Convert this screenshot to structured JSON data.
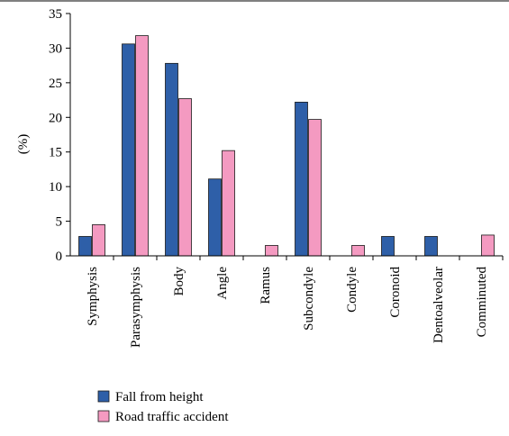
{
  "chart_data": {
    "type": "bar",
    "title": "",
    "xlabel": "",
    "ylabel": "(%)",
    "ylim": [
      0,
      35
    ],
    "yticks": [
      0,
      5,
      10,
      15,
      20,
      25,
      30,
      35
    ],
    "grid": false,
    "legend_position": "bottom-left",
    "categories": [
      "Symphysis",
      "Parasymphysis",
      "Body",
      "Angle",
      "Ramus",
      "Subcondyle",
      "Condyle",
      "Coronoid",
      "Dentoalveolar",
      "Comminuted"
    ],
    "series": [
      {
        "name": "Fall from height",
        "color": "#2e5fa8",
        "values": [
          2.8,
          30.6,
          27.8,
          11.1,
          0,
          22.2,
          0,
          2.8,
          2.8,
          0
        ]
      },
      {
        "name": "Road traffic accident",
        "color": "#f49ac1",
        "values": [
          4.5,
          31.8,
          22.7,
          15.2,
          1.5,
          19.7,
          1.5,
          0,
          0,
          3.0
        ]
      }
    ]
  }
}
